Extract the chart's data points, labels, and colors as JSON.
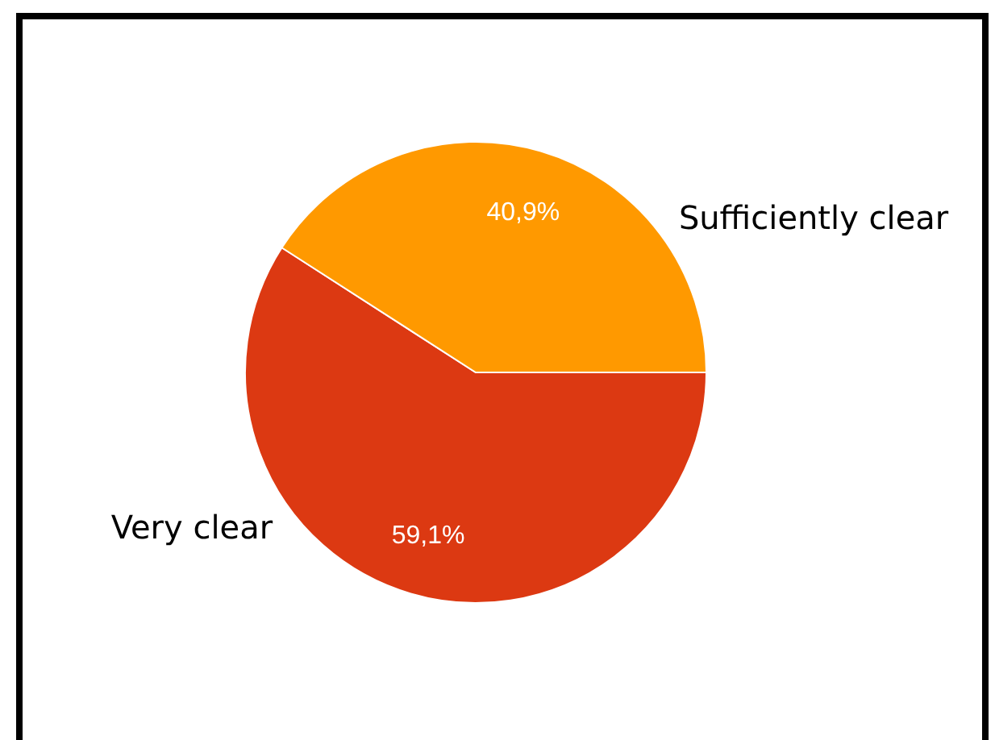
{
  "chart_data": {
    "type": "pie",
    "categories": [
      "Very clear",
      "Sufficiently clear"
    ],
    "values": [
      59.1,
      40.9
    ],
    "colors": [
      "#dc3912",
      "#ff9900"
    ],
    "value_labels": [
      "59,1%",
      "40,9%"
    ]
  }
}
